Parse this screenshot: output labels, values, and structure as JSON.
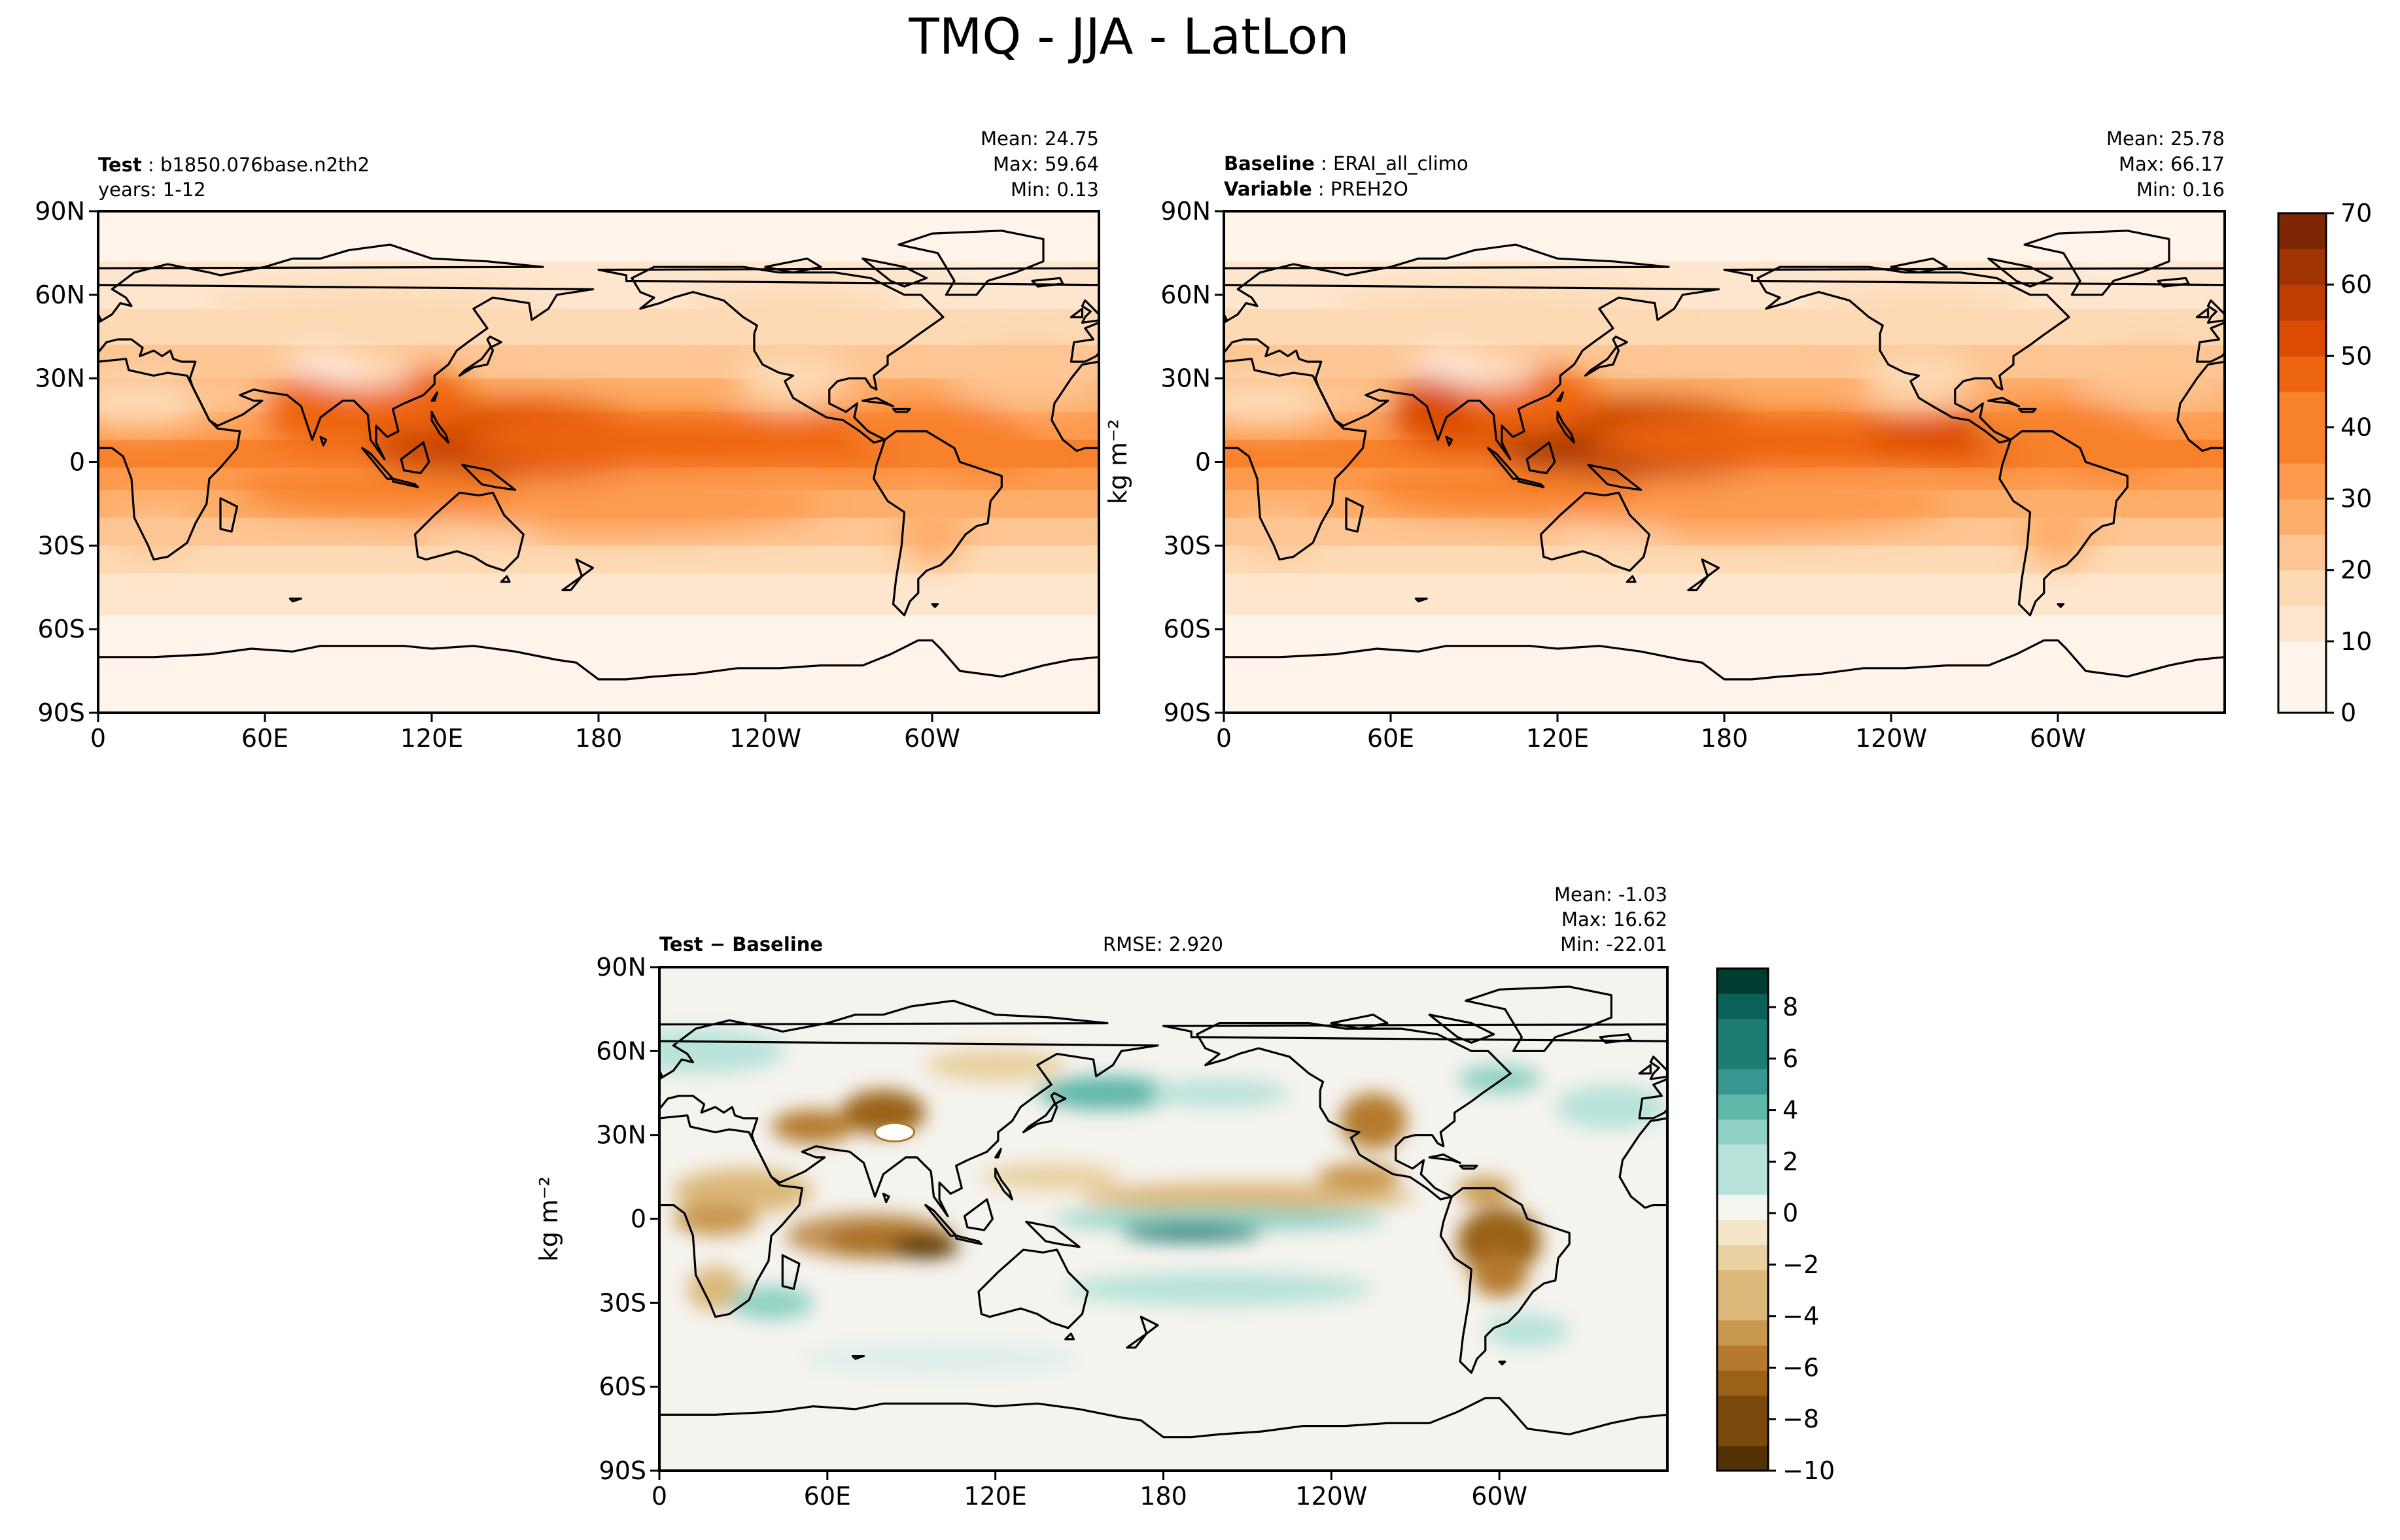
{
  "figure": {
    "suptitle": "TMQ - JJA - LatLon"
  },
  "colors": {
    "seq": [
      "#fff4ea",
      "#fee6ce",
      "#fdd9b4",
      "#fdc593",
      "#fdae6b",
      "#fd9a4e",
      "#f8812c",
      "#ee6511",
      "#db4b03",
      "#bf3c02",
      "#a13403",
      "#7f2704"
    ],
    "div_neg": [
      "#543005",
      "#7a4a0c",
      "#9a6217",
      "#b57a2e",
      "#c9984f",
      "#dbb87a",
      "#e9d2a2",
      "#f4e6c8"
    ],
    "div_pos": [
      "#dff0ec",
      "#b8e3da",
      "#8fd1c4",
      "#5fb7a8",
      "#35978f",
      "#1d7d74",
      "#0b6157",
      "#003c30"
    ],
    "neutral": "#f5f3ee",
    "coast": "#000000"
  },
  "chart_data": [
    {
      "type": "heatmap",
      "panel": "test",
      "left_label": "Test",
      "left_value": "b1850.076base.n2th2",
      "left_line2": "years: 1-12",
      "stats": {
        "mean": "Mean: 24.75",
        "max": "Max: 59.64",
        "min": "Min:  0.13"
      },
      "ylabel": "",
      "x_ticks": [
        "0",
        "60E",
        "120E",
        "180",
        "120W",
        "60W"
      ],
      "y_ticks": [
        "90N",
        "60N",
        "30N",
        "0",
        "30S",
        "60S",
        "90S"
      ],
      "x_range": [
        0,
        360
      ],
      "y_range": [
        -90,
        90
      ]
    },
    {
      "type": "heatmap",
      "panel": "baseline",
      "left_label": "Baseline",
      "left_value": "ERAI_all_climo",
      "left_label2": "Variable",
      "left_value2": "PREH2O",
      "stats": {
        "mean": "Mean: 25.78",
        "max": "Max: 66.17",
        "min": "Min:  0.16"
      },
      "ylabel": "kg m⁻²",
      "x_ticks": [
        "0",
        "60E",
        "120E",
        "180",
        "120W",
        "60W"
      ],
      "y_ticks": [
        "90N",
        "60N",
        "30N",
        "0",
        "30S",
        "60S",
        "90S"
      ],
      "x_range": [
        0,
        360
      ],
      "y_range": [
        -90,
        90
      ],
      "colorbar": {
        "ticks": [
          "0",
          "10",
          "20",
          "30",
          "40",
          "50",
          "60",
          "70"
        ],
        "range": [
          0,
          70
        ]
      }
    },
    {
      "type": "heatmap",
      "panel": "difference",
      "left_label": "Test − Baseline",
      "center_text": "RMSE: 2.920",
      "stats": {
        "mean": "Mean: -1.03",
        "max": "Max: 16.62",
        "min": "Min: -22.01"
      },
      "ylabel": "kg m⁻²",
      "x_ticks": [
        "0",
        "60E",
        "120E",
        "180",
        "120W",
        "60W"
      ],
      "y_ticks": [
        "90N",
        "60N",
        "30N",
        "0",
        "30S",
        "60S",
        "90S"
      ],
      "x_range": [
        0,
        360
      ],
      "y_range": [
        -90,
        90
      ],
      "colorbar": {
        "ticks": [
          "8",
          "6",
          "4",
          "2",
          "0",
          "−2",
          "−4",
          "−6",
          "−8",
          "−10"
        ],
        "range": [
          -10,
          9.5
        ]
      }
    }
  ]
}
